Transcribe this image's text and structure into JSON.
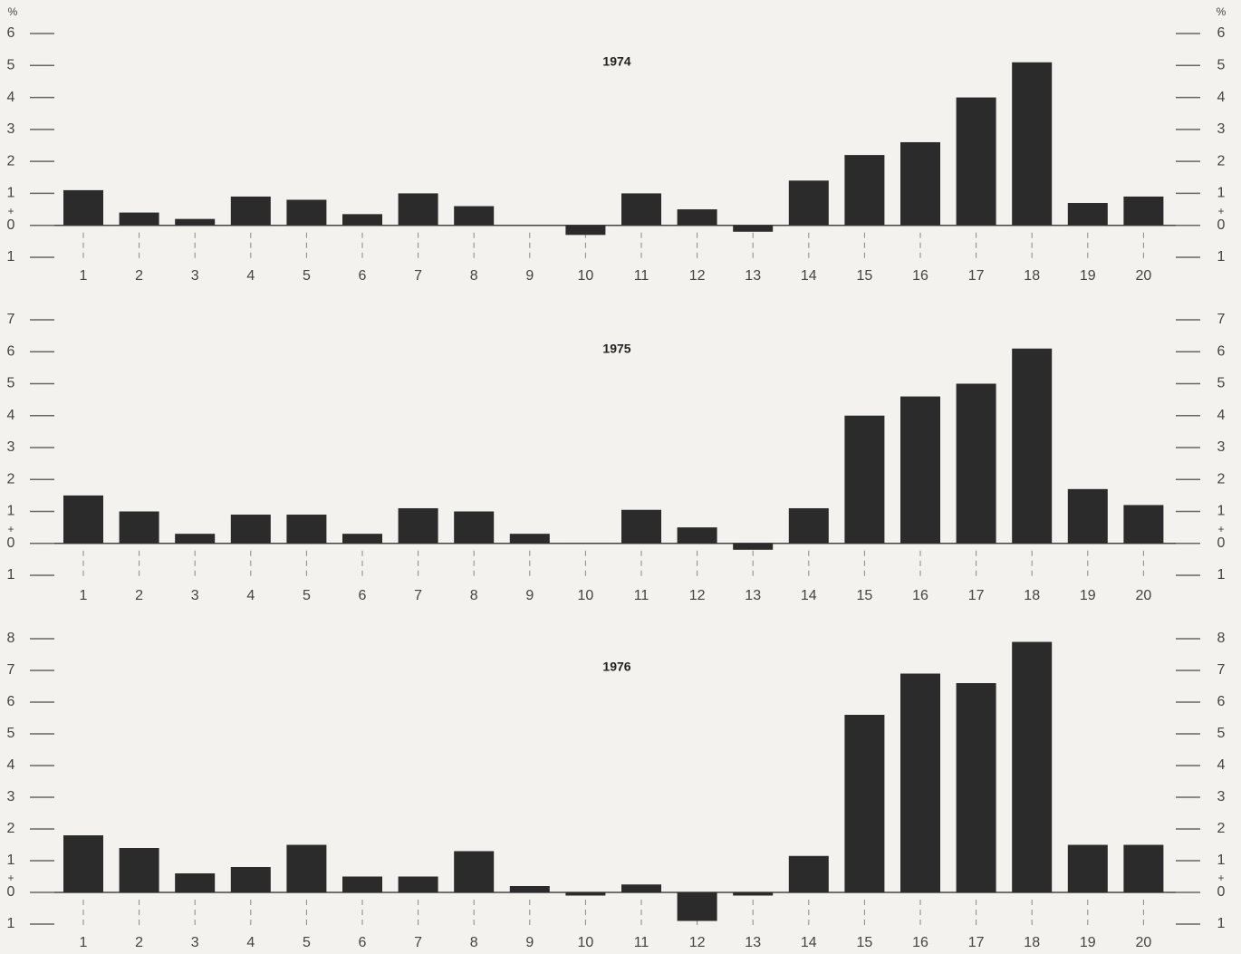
{
  "chart_data": [
    {
      "type": "bar",
      "title": "1974",
      "unit": "%",
      "sign": "+",
      "color": "#2b2b2b",
      "categories": [
        "1",
        "2",
        "3",
        "4",
        "5",
        "6",
        "7",
        "8",
        "9",
        "10",
        "11",
        "12",
        "13",
        "14",
        "15",
        "16",
        "17",
        "18",
        "19",
        "20"
      ],
      "values": [
        1.1,
        0.4,
        0.2,
        0.9,
        0.8,
        0.35,
        1.0,
        0.6,
        0,
        -0.3,
        1.0,
        0.5,
        -0.2,
        1.4,
        2.2,
        2.6,
        4.0,
        5.1,
        0.7,
        0.9
      ],
      "ylim": [
        -1,
        6
      ],
      "yticks": [
        {
          "value": -1,
          "label": "1"
        },
        0,
        1,
        2,
        3,
        4,
        5,
        6
      ]
    },
    {
      "type": "bar",
      "title": "1975",
      "sign": "+",
      "color": "#2b2b2b",
      "categories": [
        "1",
        "2",
        "3",
        "4",
        "5",
        "6",
        "7",
        "8",
        "9",
        "10",
        "11",
        "12",
        "13",
        "14",
        "15",
        "16",
        "17",
        "18",
        "19",
        "20"
      ],
      "values": [
        1.5,
        1.0,
        0.3,
        0.9,
        0.9,
        0.3,
        1.1,
        1.0,
        0.3,
        0,
        1.05,
        0.5,
        -0.2,
        1.1,
        4.0,
        4.6,
        5.0,
        6.1,
        1.7,
        1.2
      ],
      "ylim": [
        -1,
        7
      ],
      "yticks": [
        {
          "value": -1,
          "label": "1"
        },
        0,
        1,
        2,
        3,
        4,
        5,
        6,
        7
      ]
    },
    {
      "type": "bar",
      "title": "1976",
      "sign": "+",
      "color": "#2b2b2b",
      "categories": [
        "1",
        "2",
        "3",
        "4",
        "5",
        "6",
        "7",
        "8",
        "9",
        "10",
        "11",
        "12",
        "13",
        "14",
        "15",
        "16",
        "17",
        "18",
        "19",
        "20"
      ],
      "values": [
        1.8,
        1.4,
        0.6,
        0.8,
        1.5,
        0.5,
        0.5,
        1.3,
        0.2,
        -0.1,
        0.25,
        -0.9,
        -0.1,
        1.15,
        5.6,
        6.9,
        6.6,
        7.9,
        1.5,
        1.5
      ],
      "ylim": [
        -1,
        8
      ],
      "yticks": [
        {
          "value": -1,
          "label": "1"
        },
        0,
        1,
        2,
        3,
        4,
        5,
        6,
        7,
        8
      ]
    }
  ]
}
